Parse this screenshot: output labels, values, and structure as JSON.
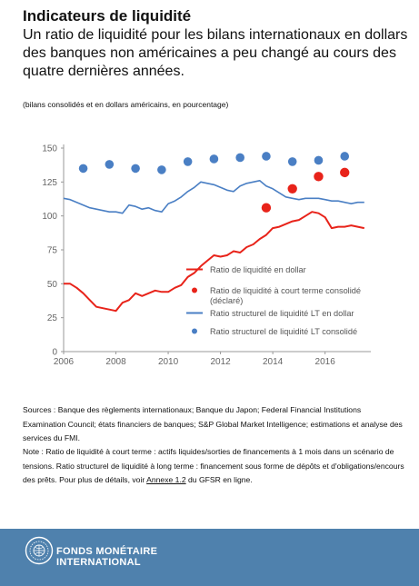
{
  "header": {
    "title": "Indicateurs de liquidité",
    "subtitle": "Un ratio de liquidité pour les bilans internationaux en dollars des banques non américaines a peu changé au cours des quatre dernières années.",
    "unit_note": "(bilans consolidés et en dollars américains, en pourcentage)"
  },
  "chart_data": {
    "type": "line",
    "title": "",
    "xlabel": "",
    "ylabel": "",
    "xlim": [
      2006,
      2017.75
    ],
    "ylim": [
      0,
      150
    ],
    "x_ticks": [
      "2006",
      "2008",
      "2010",
      "2012",
      "2014",
      "2016"
    ],
    "y_ticks": [
      "0",
      "25",
      "50",
      "75",
      "100",
      "125",
      "150"
    ],
    "legend_position": "inside right",
    "series": [
      {
        "name": "Ratio de liquidité en dollar",
        "kind": "line",
        "color": "#e8231a",
        "x": [
          2006.0,
          2006.25,
          2006.5,
          2006.75,
          2007.0,
          2007.25,
          2007.5,
          2007.75,
          2008.0,
          2008.25,
          2008.5,
          2008.75,
          2009.0,
          2009.25,
          2009.5,
          2009.75,
          2010.0,
          2010.25,
          2010.5,
          2010.75,
          2011.0,
          2011.25,
          2011.5,
          2011.75,
          2012.0,
          2012.25,
          2012.5,
          2012.75,
          2013.0,
          2013.25,
          2013.5,
          2013.75,
          2014.0,
          2014.25,
          2014.5,
          2014.75,
          2015.0,
          2015.25,
          2015.5,
          2015.75,
          2016.0,
          2016.25,
          2016.5,
          2016.75,
          2017.0,
          2017.25,
          2017.5
        ],
        "y": [
          50,
          50,
          47,
          43,
          38,
          33,
          32,
          31,
          30,
          36,
          38,
          43,
          41,
          43,
          45,
          44,
          44,
          47,
          49,
          55,
          58,
          63,
          67,
          71,
          70,
          71,
          74,
          73,
          77,
          79,
          83,
          86,
          91,
          92,
          94,
          96,
          97,
          100,
          103,
          102,
          99,
          91,
          92,
          92,
          93,
          92,
          91
        ]
      },
      {
        "name": "Ratio de liquidité à court terme consolidé (déclaré)",
        "kind": "dots",
        "color": "#e8231a",
        "x": [
          2013.75,
          2014.75,
          2015.75,
          2016.75
        ],
        "y": [
          106,
          120,
          129,
          132
        ]
      },
      {
        "name": "Ratio structurel de liquidité LT en dollar",
        "kind": "line",
        "color": "#4a7fc4",
        "x": [
          2006.0,
          2006.25,
          2006.5,
          2006.75,
          2007.0,
          2007.25,
          2007.5,
          2007.75,
          2008.0,
          2008.25,
          2008.5,
          2008.75,
          2009.0,
          2009.25,
          2009.5,
          2009.75,
          2010.0,
          2010.25,
          2010.5,
          2010.75,
          2011.0,
          2011.25,
          2011.5,
          2011.75,
          2012.0,
          2012.25,
          2012.5,
          2012.75,
          2013.0,
          2013.25,
          2013.5,
          2013.75,
          2014.0,
          2014.25,
          2014.5,
          2014.75,
          2015.0,
          2015.25,
          2015.5,
          2015.75,
          2016.0,
          2016.25,
          2016.5,
          2016.75,
          2017.0,
          2017.25,
          2017.5
        ],
        "y": [
          113,
          112,
          110,
          108,
          106,
          105,
          104,
          103,
          103,
          102,
          108,
          107,
          105,
          106,
          104,
          103,
          109,
          111,
          114,
          118,
          121,
          125,
          124,
          123,
          121,
          119,
          118,
          122,
          124,
          125,
          126,
          122,
          120,
          117,
          114,
          113,
          112,
          113,
          113,
          113,
          112,
          111,
          111,
          110,
          109,
          110,
          110
        ]
      },
      {
        "name": "Ratio structurel de liquidité LT consolidé",
        "kind": "dots",
        "color": "#4a7fc4",
        "x": [
          2006.75,
          2007.75,
          2008.75,
          2009.75,
          2010.75,
          2011.75,
          2012.75,
          2013.75,
          2014.75,
          2015.75,
          2016.75
        ],
        "y": [
          135,
          138,
          135,
          134,
          140,
          142,
          143,
          144,
          140,
          141,
          144
        ]
      }
    ]
  },
  "footer": {
    "sources": "Sources : Banque des règlements internationaux; Banque du Japon; Federal Financial Institutions Examination Council; états financiers de banques; S&P Global Market Intelligence; estimations et analyse des services du FMI.",
    "note_before": "Note : Ratio de liquidité à court terme : actifs liquides/sorties de financements à 1 mois dans un scénario de tensions. Ratio structurel de liquidité à long terme : financement sous forme de dépôts et d'obligations/encours des prêts. Pour plus de détails, voir ",
    "note_link": "Annexe 1.2",
    "note_after": " du GFSR en ligne."
  },
  "banner": {
    "line1": "FONDS MONÉTAIRE",
    "line2": "INTERNATIONAL",
    "color": "#4f81ad"
  }
}
